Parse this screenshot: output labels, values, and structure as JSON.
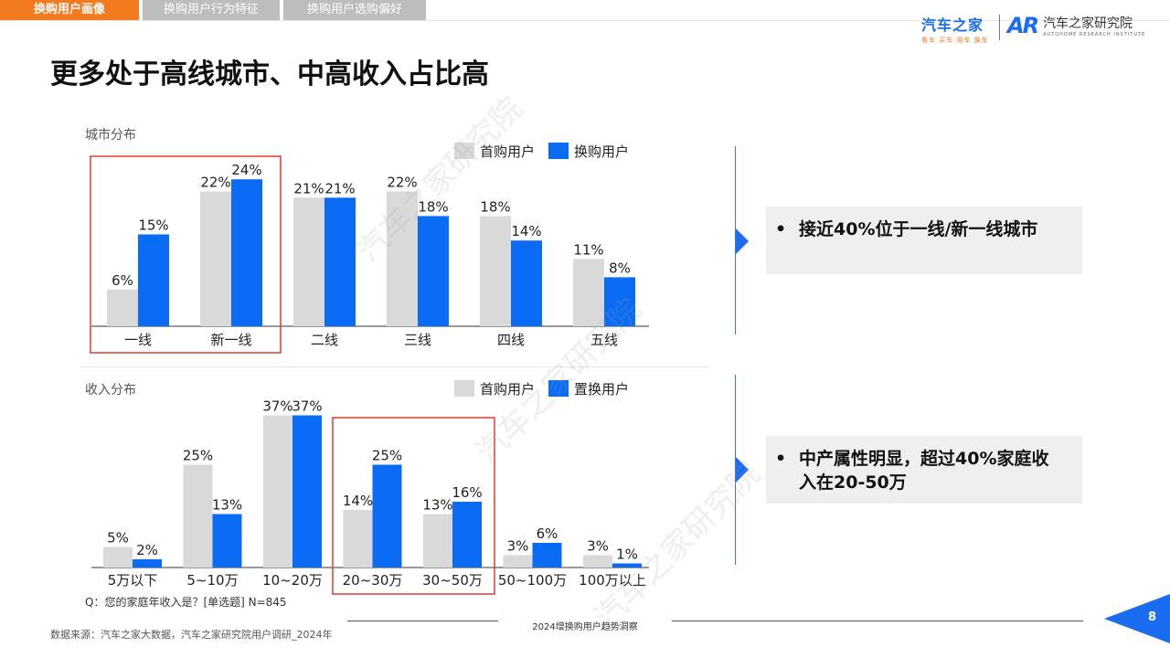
{
  "tabs": [
    "换购用户画像",
    "换购用户行为特征",
    "换购用户选购偏好"
  ],
  "logo": {
    "brand": "汽车之家",
    "brand_sub": "看车 买车 用车 换车",
    "research_mark": "AR",
    "research_cn": "汽车之家研究院",
    "research_en": "AUTOHOME RESEARCH INSTITUTE"
  },
  "title": "更多处于高线城市、中高收入占比高",
  "watermark": "汽车之家研究院",
  "insights": [
    "接近40%位于一线/新一线城市",
    "中产属性明显，超过40%家庭收入在20-50万"
  ],
  "footer": {
    "center": "2024增换购用户趋势洞察",
    "source": "数据来源：汽车之家大数据，汽车之家研究院用户调研_2024年",
    "page": "8"
  },
  "colors": {
    "first": "#d9d9d9",
    "second": "#0a6cf5",
    "highlight": "#e03c31",
    "accent": "#f47a20"
  },
  "chart_data": [
    {
      "type": "bar",
      "title": "城市分布",
      "categories": [
        "一线",
        "新一线",
        "二线",
        "三线",
        "四线",
        "五线"
      ],
      "series": [
        {
          "name": "首购用户",
          "values": [
            6,
            22,
            21,
            22,
            18,
            11
          ]
        },
        {
          "name": "换购用户",
          "values": [
            15,
            24,
            21,
            18,
            14,
            8
          ]
        }
      ],
      "value_suffix": "%",
      "highlight_categories": [
        "一线",
        "新一线"
      ],
      "legend": "top-right"
    },
    {
      "type": "bar",
      "title": "收入分布",
      "categories": [
        "5万以下",
        "5~10万",
        "10~20万",
        "20~30万",
        "30~50万",
        "50~100万",
        "100万以上"
      ],
      "series": [
        {
          "name": "首购用户",
          "values": [
            5,
            25,
            37,
            14,
            13,
            3,
            3
          ]
        },
        {
          "name": "置换用户",
          "values": [
            2,
            13,
            37,
            25,
            16,
            6,
            1
          ]
        }
      ],
      "value_suffix": "%",
      "highlight_categories": [
        "20~30万",
        "30~50万"
      ],
      "legend": "top-right",
      "note": "Q：您的家庭年收入是？[单选题] N=845"
    }
  ]
}
